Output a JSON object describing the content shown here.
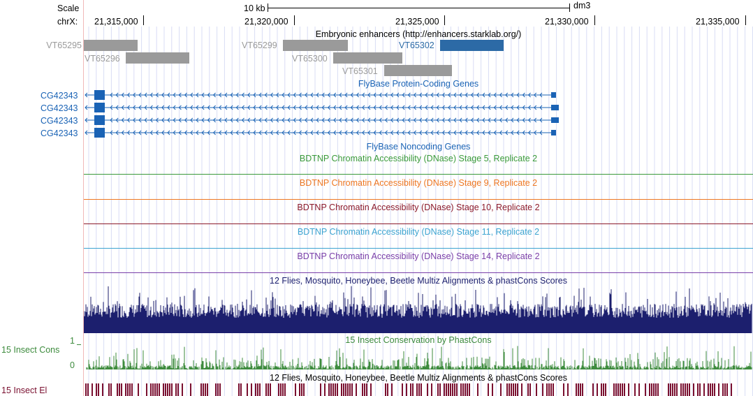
{
  "ruler": {
    "scale_label": "Scale",
    "chrom_label": "chrX:",
    "scale_bar_label": "10 kb",
    "assembly": "dm3",
    "ticks": [
      "21,315,000",
      "21,320,000",
      "21,325,000",
      "21,330,000",
      "21,335,000"
    ]
  },
  "enhancers": {
    "title": "Embryonic enhancers (http://enhancers.starklab.org/)",
    "items": [
      {
        "name": "VT65295",
        "highlighted": false
      },
      {
        "name": "VT65296",
        "highlighted": false
      },
      {
        "name": "VT65299",
        "highlighted": false
      },
      {
        "name": "VT65300",
        "highlighted": false
      },
      {
        "name": "VT65301",
        "highlighted": false
      },
      {
        "name": "VT65302",
        "highlighted": true
      }
    ]
  },
  "genes": {
    "title": "FlyBase Protein-Coding Genes",
    "transcripts": [
      "CG42343",
      "CG42343",
      "CG42343",
      "CG42343"
    ]
  },
  "noncoding": {
    "title": "FlyBase Noncoding Genes"
  },
  "dnase_tracks": [
    {
      "title": "BDTNP Chromatin Accessibility (DNase) Stage 5, Replicate 2",
      "color": "#3a9a3a"
    },
    {
      "title": "BDTNP Chromatin Accessibility (DNase) Stage 9, Replicate 2",
      "color": "#ee7722"
    },
    {
      "title": "BDTNP Chromatin Accessibility (DNase) Stage 10, Replicate 2",
      "color": "#8b1a2b"
    },
    {
      "title": "BDTNP Chromatin Accessibility (DNase) Stage 11, Replicate 2",
      "color": "#3ba3d0"
    },
    {
      "title": "BDTNP Chromatin Accessibility (DNase) Stage 14, Replicate 2",
      "color": "#7a3fa8"
    }
  ],
  "multiz": {
    "title": "12 Flies, Mosquito, Honeybee, Beetle Multiz Alignments & phastCons Scores",
    "color": "#1c1f6e"
  },
  "phastcons": {
    "title": "15 Insect Conservation by PhastCons",
    "side_label": "15 Insect Cons",
    "y_max": "1",
    "y_min": "0",
    "color": "#3d8b3d"
  },
  "elements": {
    "title": "12 Flies, Mosquito, Honeybee, Beetle Multiz Alignments & phastCons Scores",
    "side_label": "15 Insect El",
    "color": "#7a1030"
  },
  "colors": {
    "enhancer_gray": "#9a9a9a",
    "enhancer_highlight": "#2c6aa6",
    "gene_blue": "#1a63b5",
    "grid_line": "#d8dcf4",
    "left_guide": "#f0b8b8"
  }
}
